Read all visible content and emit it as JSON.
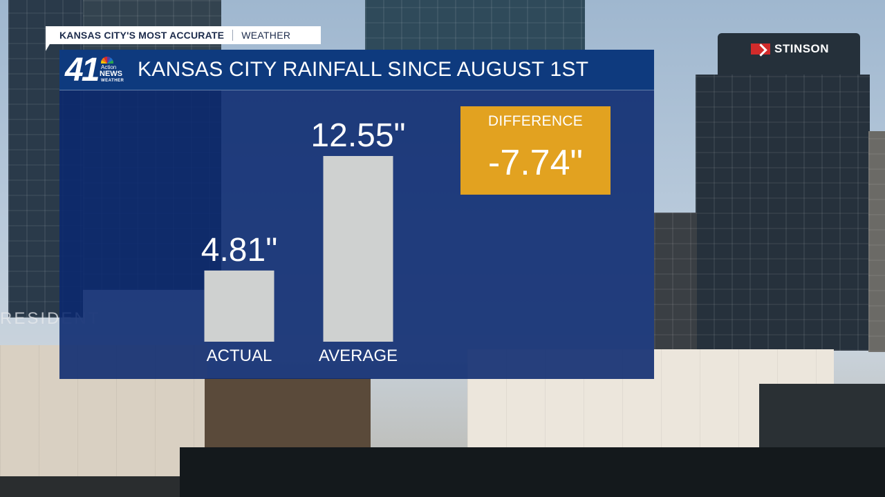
{
  "tag": {
    "left_text": "KANSAS CITY'S MOST ACCURATE",
    "right_text": "WEATHER"
  },
  "logo": {
    "number": "41",
    "line1": "Action",
    "line2": "NEWS",
    "line3": "WEATHER"
  },
  "background": {
    "building_sign": "STINSON",
    "storefront_text": "RESIDENT"
  },
  "title": "KANSAS CITY RAINFALL SINCE AUGUST 1ST",
  "difference": {
    "label": "DIFFERENCE",
    "value": "-7.74\""
  },
  "colors": {
    "panel": "#0a286e",
    "header": "#0e3a7e",
    "bar": "#cfd1d0",
    "accent": "#e2a220"
  },
  "chart_data": {
    "type": "bar",
    "title": "KANSAS CITY RAINFALL SINCE AUGUST 1ST",
    "categories": [
      "ACTUAL",
      "AVERAGE"
    ],
    "values": [
      4.81,
      12.55
    ],
    "value_labels": [
      "4.81\"",
      "12.55\""
    ],
    "unit": "inches",
    "ylim": [
      0,
      12.55
    ],
    "grid": false,
    "legend": "none"
  }
}
